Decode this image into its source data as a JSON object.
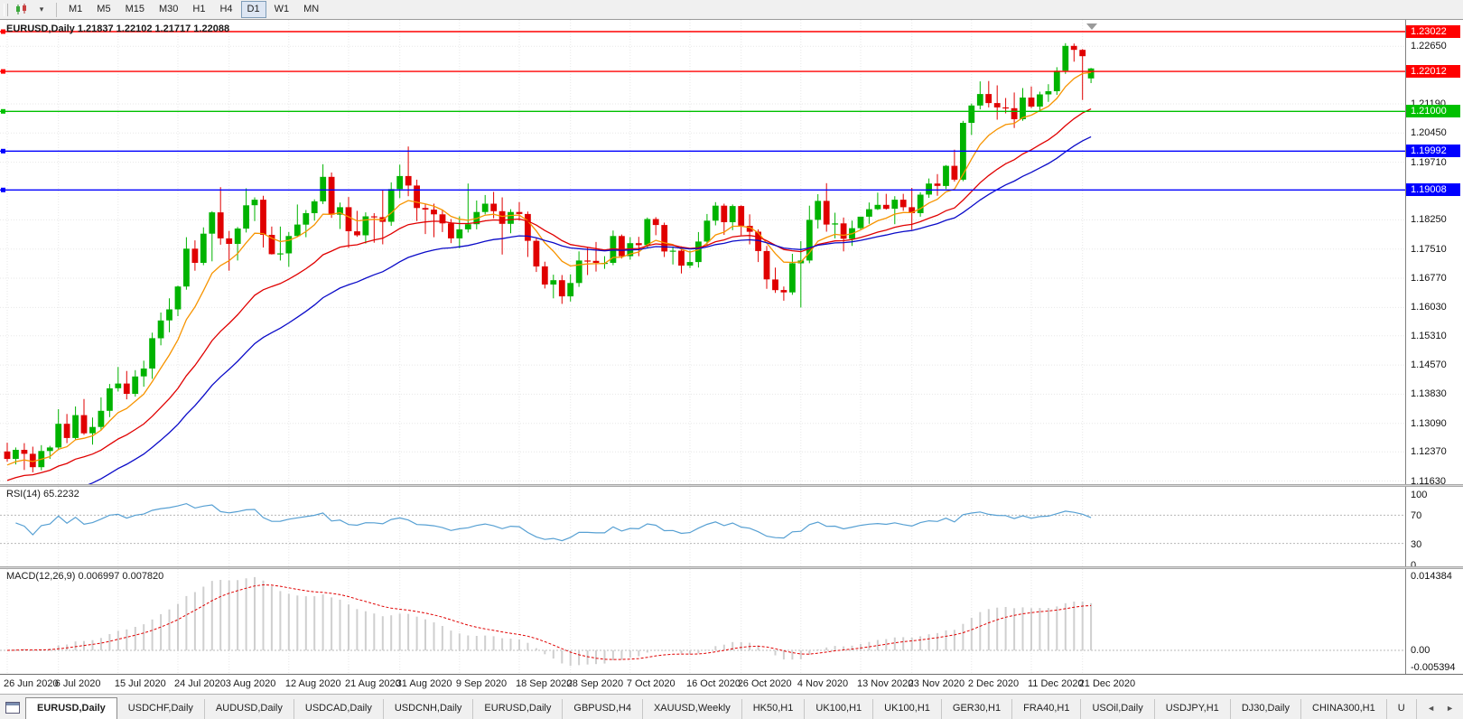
{
  "toolbar": {
    "timeframes": [
      "M1",
      "M5",
      "M15",
      "M30",
      "H1",
      "H4",
      "D1",
      "W1",
      "MN"
    ],
    "active_timeframe": "D1",
    "dropdown_caret": "▾"
  },
  "tabs": {
    "labels": [
      "EURUSD,Daily",
      "USDCHF,Daily",
      "AUDUSD,Daily",
      "USDCAD,Daily",
      "USDCNH,Daily",
      "EURUSD,Daily",
      "GBPUSD,H4",
      "XAUUSD,Weekly",
      "HK50,H1",
      "UK100,H1",
      "UK100,H1",
      "GER30,H1",
      "FRA40,H1",
      "USOil,Daily",
      "USDJPY,H1",
      "DJ30,Daily",
      "CHINA300,H1",
      "U"
    ],
    "active_index": 0,
    "scroll_left": "◄",
    "scroll_right": "►"
  },
  "chart_data": {
    "type": "candlestick",
    "symbol": "EURUSD",
    "timeframe": "Daily",
    "title": "EURUSD,Daily 1.21837 1.22102 1.21717 1.22088",
    "ohlc_display": {
      "open": "1.21837",
      "high": "1.22102",
      "low": "1.21717",
      "close": "1.22088"
    },
    "colors": {
      "up": "#00b300",
      "down": "#e00000",
      "grid": "#e7e7e7"
    },
    "price_axis": {
      "range": [
        1.1155,
        1.2332
      ],
      "ticks": [
        "1.22650",
        "1.21190",
        "1.20450",
        "1.19710",
        "1.18250",
        "1.17510",
        "1.16770",
        "1.16030",
        "1.15310",
        "1.14570",
        "1.13830",
        "1.13090",
        "1.12370",
        "1.11630"
      ]
    },
    "hlines": [
      {
        "price": 1.23022,
        "label": "1.23022",
        "color": "#ff0000"
      },
      {
        "price": 1.22012,
        "label": "1.22012",
        "color": "#ff0000"
      },
      {
        "price": 1.21,
        "label": "1.21000",
        "color": "#00c000"
      },
      {
        "price": 1.19992,
        "label": "1.19992",
        "color": "#0000ff"
      },
      {
        "price": 1.19008,
        "label": "1.19008",
        "color": "#0000ff"
      }
    ],
    "moving_averages": [
      {
        "name": "MA fast",
        "period": 8,
        "seed_offset": -0.002,
        "color": "#f79400"
      },
      {
        "name": "MA mid",
        "period": 21,
        "seed_offset": -0.006,
        "color": "#e00000"
      },
      {
        "name": "MA slow",
        "period": 34,
        "seed_offset": -0.016,
        "color": "#0a0ac8"
      }
    ],
    "indicators": [
      {
        "name": "RSI",
        "label": "RSI(14) 65.2232",
        "value": "65.2232",
        "period": 14,
        "levels": [
          70,
          30
        ],
        "ticks": [
          "100",
          "70",
          "30",
          "0"
        ],
        "color": "#57a0d3"
      },
      {
        "name": "MACD",
        "label": "MACD(12,26,9) 0.006997 0.007820",
        "values": [
          "0.006997",
          "0.007820"
        ],
        "params": [
          12,
          26,
          9
        ],
        "ticks": [
          "0.014384",
          "0.00",
          "-0.005394"
        ],
        "hist_color": "#cfcfcf",
        "signal_color": "#e00000"
      }
    ],
    "x_ticks": [
      [
        0,
        "26 Jun 2020"
      ],
      [
        6,
        "6 Jul 2020"
      ],
      [
        13,
        "15 Jul 2020"
      ],
      [
        20,
        "24 Jul 2020"
      ],
      [
        26,
        "3 Aug 2020"
      ],
      [
        33,
        "12 Aug 2020"
      ],
      [
        40,
        "21 Aug 2020"
      ],
      [
        46,
        "31 Aug 2020"
      ],
      [
        53,
        "9 Sep 2020"
      ],
      [
        60,
        "18 Sep 2020"
      ],
      [
        66,
        "28 Sep 2020"
      ],
      [
        73,
        "7 Oct 2020"
      ],
      [
        80,
        "16 Oct 2020"
      ],
      [
        86,
        "26 Oct 2020"
      ],
      [
        93,
        "4 Nov 2020"
      ],
      [
        100,
        "13 Nov 2020"
      ],
      [
        106,
        "23 Nov 2020"
      ],
      [
        113,
        "2 Dec 2020"
      ],
      [
        120,
        "11 Dec 2020"
      ],
      [
        126,
        "21 Dec 2020"
      ]
    ],
    "candles": [
      [
        1.1238,
        1.126,
        1.1212,
        1.1219
      ],
      [
        1.1219,
        1.1248,
        1.1205,
        1.1242
      ],
      [
        1.1242,
        1.1259,
        1.1191,
        1.1232
      ],
      [
        1.1232,
        1.125,
        1.1185,
        1.1198
      ],
      [
        1.1198,
        1.1254,
        1.119,
        1.1239
      ],
      [
        1.1239,
        1.1252,
        1.1219,
        1.1248
      ],
      [
        1.1248,
        1.1345,
        1.1241,
        1.1308
      ],
      [
        1.1308,
        1.1333,
        1.1259,
        1.1272
      ],
      [
        1.1272,
        1.1352,
        1.1266,
        1.133
      ],
      [
        1.133,
        1.1371,
        1.128,
        1.1284
      ],
      [
        1.1284,
        1.1324,
        1.1255,
        1.13
      ],
      [
        1.13,
        1.1375,
        1.1291,
        1.1341
      ],
      [
        1.1341,
        1.1409,
        1.1325,
        1.1398
      ],
      [
        1.1398,
        1.1452,
        1.139,
        1.141
      ],
      [
        1.141,
        1.1442,
        1.137,
        1.1384
      ],
      [
        1.1384,
        1.1444,
        1.1377,
        1.1428
      ],
      [
        1.1428,
        1.1468,
        1.1402,
        1.1448
      ],
      [
        1.1448,
        1.1539,
        1.1422,
        1.1525
      ],
      [
        1.1525,
        1.159,
        1.1507,
        1.157
      ],
      [
        1.157,
        1.1626,
        1.154,
        1.1598
      ],
      [
        1.1598,
        1.1658,
        1.1581,
        1.1656
      ],
      [
        1.1656,
        1.1781,
        1.1648,
        1.1752
      ],
      [
        1.1752,
        1.1773,
        1.1696,
        1.1716
      ],
      [
        1.1716,
        1.1806,
        1.171,
        1.179
      ],
      [
        1.179,
        1.1847,
        1.172,
        1.1844
      ],
      [
        1.1844,
        1.1908,
        1.1762,
        1.1778
      ],
      [
        1.1778,
        1.1797,
        1.1696,
        1.1764
      ],
      [
        1.1764,
        1.1807,
        1.1722,
        1.1803
      ],
      [
        1.1803,
        1.1905,
        1.1793,
        1.1862
      ],
      [
        1.1862,
        1.1882,
        1.1822,
        1.1876
      ],
      [
        1.1876,
        1.1886,
        1.1755,
        1.1787
      ],
      [
        1.1787,
        1.1808,
        1.1737,
        1.1738
      ],
      [
        1.1738,
        1.1808,
        1.1722,
        1.174
      ],
      [
        1.174,
        1.1794,
        1.1706,
        1.1784
      ],
      [
        1.1784,
        1.1864,
        1.1782,
        1.1813
      ],
      [
        1.1813,
        1.185,
        1.1781,
        1.1842
      ],
      [
        1.1842,
        1.1877,
        1.1823,
        1.1872
      ],
      [
        1.1872,
        1.1966,
        1.1865,
        1.1934
      ],
      [
        1.1934,
        1.1945,
        1.183,
        1.1838
      ],
      [
        1.1838,
        1.1869,
        1.1802,
        1.1857
      ],
      [
        1.1857,
        1.1883,
        1.1754,
        1.1796
      ],
      [
        1.1796,
        1.1848,
        1.1782,
        1.1786
      ],
      [
        1.1786,
        1.1844,
        1.1765,
        1.1834
      ],
      [
        1.1834,
        1.1842,
        1.1767,
        1.1832
      ],
      [
        1.1832,
        1.1902,
        1.1763,
        1.182
      ],
      [
        1.182,
        1.192,
        1.181,
        1.1903
      ],
      [
        1.1903,
        1.1965,
        1.188,
        1.1936
      ],
      [
        1.1936,
        1.2011,
        1.1885,
        1.1912
      ],
      [
        1.1912,
        1.1927,
        1.1822,
        1.1855
      ],
      [
        1.1855,
        1.1865,
        1.1789,
        1.1851
      ],
      [
        1.1851,
        1.1866,
        1.1781,
        1.1839
      ],
      [
        1.1839,
        1.185,
        1.1794,
        1.1816
      ],
      [
        1.1816,
        1.1827,
        1.1766,
        1.1778
      ],
      [
        1.1778,
        1.1834,
        1.1753,
        1.1801
      ],
      [
        1.1801,
        1.1917,
        1.1793,
        1.1814
      ],
      [
        1.1814,
        1.1874,
        1.1801,
        1.1845
      ],
      [
        1.1845,
        1.1888,
        1.1839,
        1.1866
      ],
      [
        1.1866,
        1.1896,
        1.1829,
        1.1847
      ],
      [
        1.1847,
        1.1882,
        1.1737,
        1.1815
      ],
      [
        1.1815,
        1.1852,
        1.1791,
        1.1845
      ],
      [
        1.1845,
        1.187,
        1.1823,
        1.184
      ],
      [
        1.184,
        1.1846,
        1.1731,
        1.1772
      ],
      [
        1.1772,
        1.1778,
        1.1693,
        1.1707
      ],
      [
        1.1707,
        1.1719,
        1.1651,
        1.1661
      ],
      [
        1.1661,
        1.1686,
        1.1626,
        1.1672
      ],
      [
        1.1672,
        1.1685,
        1.1612,
        1.1631
      ],
      [
        1.1631,
        1.1687,
        1.1618,
        1.1665
      ],
      [
        1.1665,
        1.1745,
        1.1655,
        1.1722
      ],
      [
        1.1722,
        1.1755,
        1.1685,
        1.1721
      ],
      [
        1.1721,
        1.1769,
        1.1694,
        1.1716
      ],
      [
        1.1716,
        1.1733,
        1.1701,
        1.1716
      ],
      [
        1.1716,
        1.1798,
        1.171,
        1.1784
      ],
      [
        1.1784,
        1.1788,
        1.1727,
        1.1733
      ],
      [
        1.1733,
        1.1781,
        1.1724,
        1.1766
      ],
      [
        1.1766,
        1.1782,
        1.1733,
        1.1761
      ],
      [
        1.1761,
        1.1831,
        1.1753,
        1.1827
      ],
      [
        1.1827,
        1.1832,
        1.1786,
        1.1812
      ],
      [
        1.1812,
        1.1818,
        1.1731,
        1.1745
      ],
      [
        1.1745,
        1.1758,
        1.1712,
        1.1747
      ],
      [
        1.1747,
        1.1758,
        1.1689,
        1.1709
      ],
      [
        1.1709,
        1.1747,
        1.1703,
        1.1718
      ],
      [
        1.1718,
        1.1794,
        1.1704,
        1.177
      ],
      [
        1.177,
        1.184,
        1.1761,
        1.1823
      ],
      [
        1.1823,
        1.187,
        1.1811,
        1.1861
      ],
      [
        1.1861,
        1.1866,
        1.1787,
        1.1819
      ],
      [
        1.1819,
        1.1864,
        1.1799,
        1.186
      ],
      [
        1.186,
        1.1862,
        1.1786,
        1.181
      ],
      [
        1.181,
        1.1839,
        1.1763,
        1.1795
      ],
      [
        1.1795,
        1.1801,
        1.1718,
        1.1746
      ],
      [
        1.1746,
        1.1759,
        1.165,
        1.1674
      ],
      [
        1.1674,
        1.1704,
        1.164,
        1.1647
      ],
      [
        1.1647,
        1.1656,
        1.162,
        1.1641
      ],
      [
        1.1641,
        1.1739,
        1.1635,
        1.1715
      ],
      [
        1.1715,
        1.1771,
        1.1603,
        1.1722
      ],
      [
        1.1722,
        1.1861,
        1.1715,
        1.1825
      ],
      [
        1.1825,
        1.189,
        1.1803,
        1.1873
      ],
      [
        1.1873,
        1.1918,
        1.1795,
        1.1813
      ],
      [
        1.1813,
        1.1843,
        1.1778,
        1.1816
      ],
      [
        1.1816,
        1.1831,
        1.1745,
        1.1777
      ],
      [
        1.1777,
        1.1823,
        1.1759,
        1.1804
      ],
      [
        1.1804,
        1.1833,
        1.1799,
        1.1833
      ],
      [
        1.1833,
        1.1869,
        1.1815,
        1.1852
      ],
      [
        1.1852,
        1.1894,
        1.185,
        1.1863
      ],
      [
        1.1863,
        1.1891,
        1.1851,
        1.1853
      ],
      [
        1.1853,
        1.1885,
        1.1814,
        1.1876
      ],
      [
        1.1876,
        1.1891,
        1.1848,
        1.1857
      ],
      [
        1.1857,
        1.1906,
        1.18,
        1.1842
      ],
      [
        1.1842,
        1.1895,
        1.1833,
        1.1889
      ],
      [
        1.1889,
        1.193,
        1.1881,
        1.1917
      ],
      [
        1.1917,
        1.1941,
        1.1886,
        1.1911
      ],
      [
        1.1911,
        1.1964,
        1.1903,
        1.1962
      ],
      [
        1.1962,
        1.2003,
        1.1922,
        1.1927
      ],
      [
        1.1927,
        1.2076,
        1.1923,
        1.2071
      ],
      [
        1.2071,
        1.212,
        1.204,
        1.2115
      ],
      [
        1.2115,
        1.2176,
        1.2105,
        1.2144
      ],
      [
        1.2144,
        1.2177,
        1.211,
        1.2121
      ],
      [
        1.2121,
        1.2166,
        1.2079,
        1.211
      ],
      [
        1.211,
        1.2134,
        1.2095,
        1.2108
      ],
      [
        1.2108,
        1.2148,
        1.2058,
        1.208
      ],
      [
        1.208,
        1.2159,
        1.2076,
        1.2135
      ],
      [
        1.2135,
        1.2163,
        1.2108,
        1.2112
      ],
      [
        1.2112,
        1.215,
        1.21,
        1.2143
      ],
      [
        1.2143,
        1.2169,
        1.2124,
        1.2151
      ],
      [
        1.2151,
        1.2212,
        1.2142,
        1.2203
      ],
      [
        1.2203,
        1.2273,
        1.2195,
        1.2266
      ],
      [
        1.2266,
        1.2272,
        1.2226,
        1.2256
      ],
      [
        1.2256,
        1.2258,
        1.2129,
        1.224
      ],
      [
        1.21837,
        1.22102,
        1.21717,
        1.22088
      ]
    ]
  }
}
